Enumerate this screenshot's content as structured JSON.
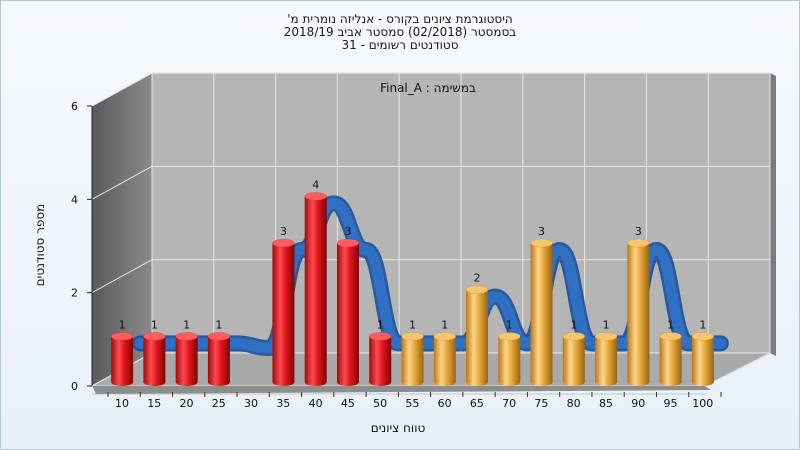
{
  "chart_data": {
    "type": "bar",
    "title_lines": [
      "היסטוגרמת ציונים בקורס - אנליזה נומרית מ'",
      "בסמסטר  (02/2018)  סמסטר אביב 2018/19",
      "סטודנטים רשומים - 31"
    ],
    "inner_title": "במשימה : Final_A",
    "xlabel": "טווח ציונים",
    "ylabel": "מספר סטודנטים",
    "ylim": [
      0,
      6
    ],
    "yticks": [
      0,
      2,
      4,
      6
    ],
    "categories": [
      "10",
      "15",
      "20",
      "25",
      "30",
      "35",
      "40",
      "45",
      "50",
      "55",
      "60",
      "65",
      "70",
      "75",
      "80",
      "85",
      "90",
      "95",
      "100"
    ],
    "values": [
      1,
      1,
      1,
      1,
      0,
      3,
      4,
      3,
      1,
      1,
      1,
      2,
      1,
      3,
      1,
      1,
      3,
      1,
      1
    ],
    "bar_colors": {
      "fail": "#e0161c",
      "pass": "#e6a83a"
    },
    "pass_from_category": "55",
    "curve_color": "#2f6fc4",
    "grid": true
  }
}
